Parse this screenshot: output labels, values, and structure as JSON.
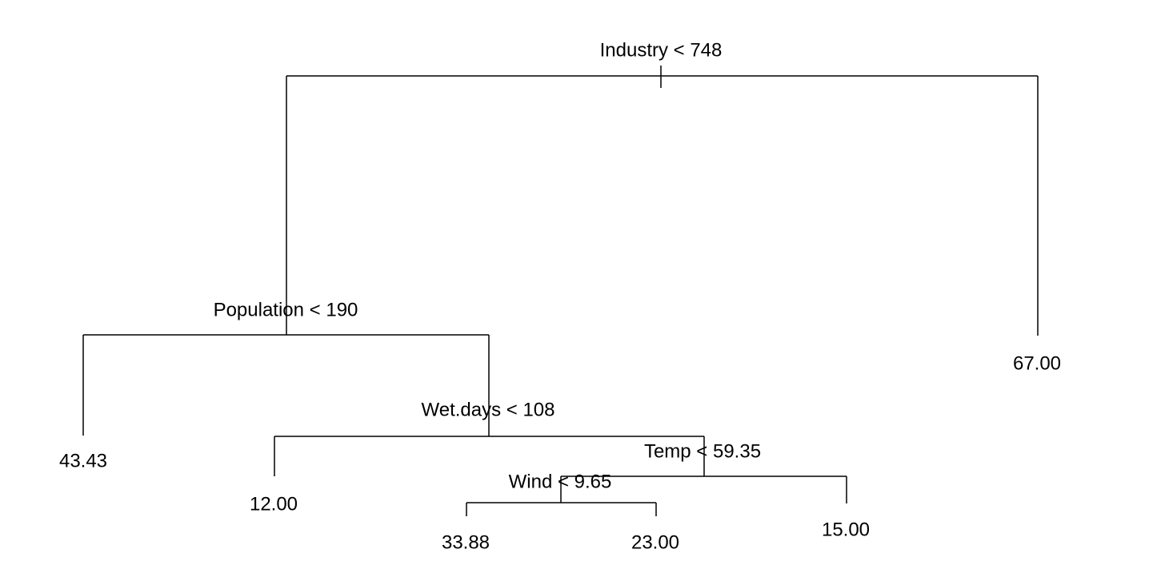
{
  "nodes": [
    {
      "label": "Industry < 748"
    },
    {
      "label": "Population < 190"
    },
    {
      "label": "67.00"
    },
    {
      "label": "43.43"
    },
    {
      "label": "Wet.days < 108"
    },
    {
      "label": "12.00"
    },
    {
      "label": "Temp < 59.35"
    },
    {
      "label": "Wind < 9.65"
    },
    {
      "label": "15.00"
    },
    {
      "label": "33.88"
    },
    {
      "label": "23.00"
    }
  ]
}
